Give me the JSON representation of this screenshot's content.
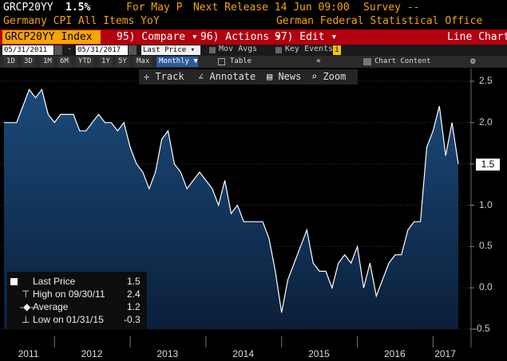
{
  "header": {
    "ticker": "GRCP20YY",
    "value": "1.5%",
    "for_label": "For May P",
    "next_release": "Next Release 14 Jun 09:00",
    "survey": "Survey --",
    "title": "Germany CPI All Items YoY",
    "source": "German Federal Statistical Office"
  },
  "toolbar": {
    "security": "GRCP20YY Index",
    "compare": "95) Compare",
    "actions": "96) Actions",
    "edit": "97) Edit",
    "chart_type": "Line Chart"
  },
  "range": {
    "start": "05/31/2011",
    "dash": "-",
    "end": "05/31/2017",
    "field": "Last Price",
    "mov_avgs": "Mov Avgs",
    "key_events": "Key Events"
  },
  "periods": [
    "1D",
    "3D",
    "1M",
    "6M",
    "YTD",
    "1Y",
    "5Y",
    "Max"
  ],
  "frequency": "Monthly",
  "table_label": "Table",
  "chart_content": "Chart Content",
  "tools": [
    "Track",
    "Annotate",
    "News",
    "Zoom"
  ],
  "y_ticks": [
    "2.5",
    "2.0",
    "1.5",
    "1.0",
    "0.5",
    "0.0",
    "-0.5"
  ],
  "x_ticks": [
    "2011",
    "2012",
    "2013",
    "2014",
    "2015",
    "2016",
    "2017"
  ],
  "last_tag": "1.5",
  "legend": {
    "last_label": "Last Price",
    "last_value": "1.5",
    "high_label": "High on 09/30/11",
    "high_value": "2.4",
    "avg_label": "Average",
    "avg_value": "1.2",
    "low_label": "Low on 01/31/15",
    "low_value": "-0.3"
  },
  "colors": {
    "accent": "#f7a500",
    "bar": "#b3000f",
    "line": "#ffffff",
    "fill": "#16385f"
  },
  "chart_data": {
    "type": "area",
    "ylim": [
      -0.5,
      2.5
    ],
    "x": [
      "2011-05",
      "2011-06",
      "2011-07",
      "2011-08",
      "2011-09",
      "2011-10",
      "2011-11",
      "2011-12",
      "2012-01",
      "2012-02",
      "2012-03",
      "2012-04",
      "2012-05",
      "2012-06",
      "2012-07",
      "2012-08",
      "2012-09",
      "2012-10",
      "2012-11",
      "2012-12",
      "2013-01",
      "2013-02",
      "2013-03",
      "2013-04",
      "2013-05",
      "2013-06",
      "2013-07",
      "2013-08",
      "2013-09",
      "2013-10",
      "2013-11",
      "2013-12",
      "2014-01",
      "2014-02",
      "2014-03",
      "2014-04",
      "2014-05",
      "2014-06",
      "2014-07",
      "2014-08",
      "2014-09",
      "2014-10",
      "2014-11",
      "2014-12",
      "2015-01",
      "2015-02",
      "2015-03",
      "2015-04",
      "2015-05",
      "2015-06",
      "2015-07",
      "2015-08",
      "2015-09",
      "2015-10",
      "2015-11",
      "2015-12",
      "2016-01",
      "2016-02",
      "2016-03",
      "2016-04",
      "2016-05",
      "2016-06",
      "2016-07",
      "2016-08",
      "2016-09",
      "2016-10",
      "2016-11",
      "2016-12",
      "2017-01",
      "2017-02",
      "2017-03",
      "2017-04",
      "2017-05"
    ],
    "values": [
      2.0,
      2.0,
      2.0,
      2.2,
      2.4,
      2.3,
      2.4,
      2.1,
      2.0,
      2.1,
      2.1,
      2.1,
      1.9,
      1.9,
      2.0,
      2.1,
      2.0,
      2.0,
      1.9,
      2.0,
      1.7,
      1.5,
      1.4,
      1.2,
      1.4,
      1.8,
      1.9,
      1.5,
      1.4,
      1.2,
      1.3,
      1.4,
      1.3,
      1.2,
      1.0,
      1.3,
      0.9,
      1.0,
      0.8,
      0.8,
      0.8,
      0.8,
      0.6,
      0.2,
      -0.3,
      0.1,
      0.3,
      0.5,
      0.7,
      0.3,
      0.2,
      0.2,
      0.0,
      0.3,
      0.4,
      0.3,
      0.5,
      0.0,
      0.3,
      -0.1,
      0.1,
      0.3,
      0.4,
      0.4,
      0.7,
      0.8,
      0.8,
      1.7,
      1.9,
      2.2,
      1.6,
      2.0,
      1.5
    ]
  }
}
